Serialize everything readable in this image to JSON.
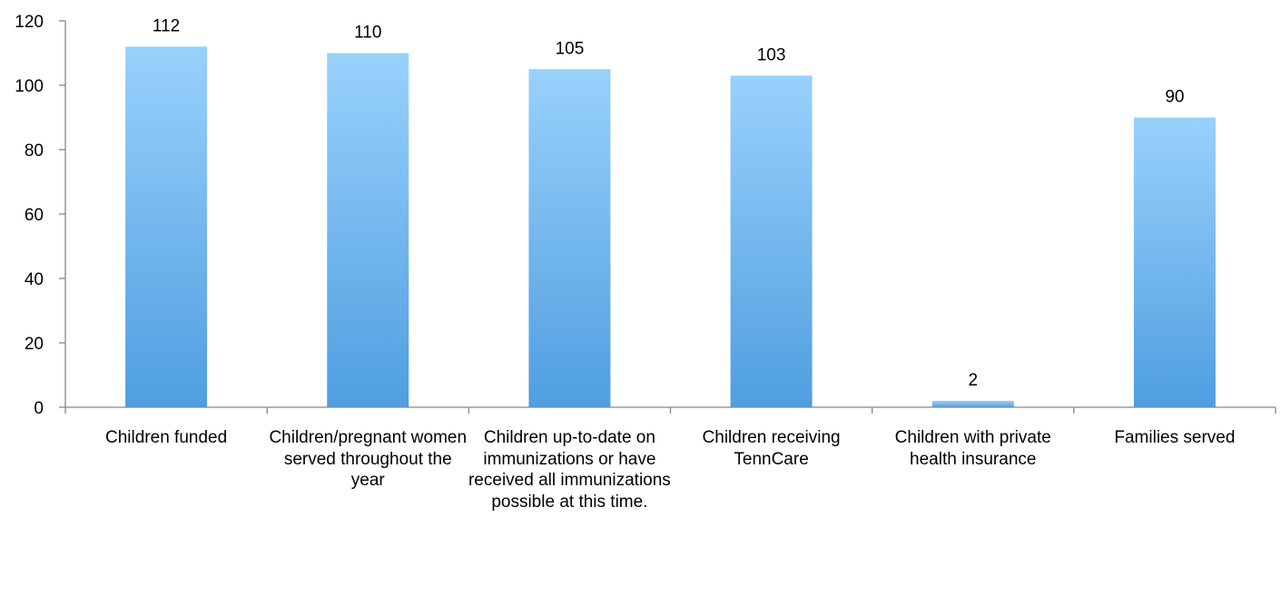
{
  "chart_data": {
    "type": "bar",
    "categories": [
      "Children funded",
      "Children/pregnant women served throughout the year",
      "Children up-to-date on immunizations or have received all immunizations possible at this time.",
      "Children receiving TennCare",
      "Children with private health insurance",
      "Families served"
    ],
    "values": [
      112,
      110,
      105,
      103,
      2,
      90
    ],
    "data_labels": [
      "112",
      "110",
      "105",
      "103",
      "2",
      "90"
    ],
    "title": "",
    "xlabel": "",
    "ylabel": "",
    "ylim": [
      0,
      120
    ],
    "yticks": [
      0,
      20,
      40,
      60,
      80,
      100,
      120
    ],
    "ytick_labels": [
      "0",
      "20",
      "40",
      "60",
      "80",
      "100",
      "120"
    ],
    "grid": false,
    "legend": "none",
    "bar_color_top": "#99D1FC",
    "bar_color_bottom": "#4F9EE0",
    "axis_color": "#868686"
  }
}
